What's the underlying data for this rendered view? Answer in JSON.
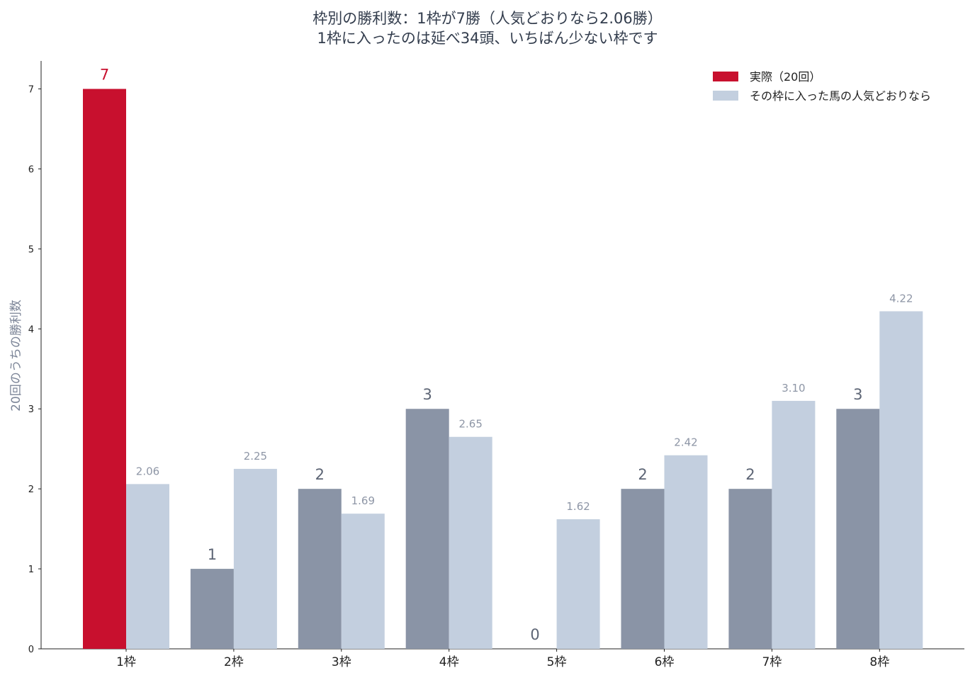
{
  "title_line1": "枠別の勝利数：1枠が7勝（人気どおりなら2.06勝）",
  "title_line2": "1枠に入ったのは延べ34頭、いちばん少ない枠です",
  "chart_data": {
    "type": "bar",
    "categories": [
      "1枠",
      "2枠",
      "3枠",
      "4枠",
      "5枠",
      "6枠",
      "7枠",
      "8枠"
    ],
    "series": [
      {
        "name": "実際（20回）",
        "values": [
          7,
          1,
          2,
          3,
          0,
          2,
          2,
          3
        ]
      },
      {
        "name": "その枠に入った馬の人気どおりなら",
        "values": [
          2.06,
          2.25,
          1.69,
          2.65,
          1.62,
          2.42,
          3.1,
          4.22
        ]
      }
    ],
    "actual_labels": [
      "7",
      "1",
      "2",
      "3",
      "0",
      "2",
      "2",
      "3"
    ],
    "expected_labels": [
      "2.06",
      "2.25",
      "1.69",
      "2.65",
      "1.62",
      "2.42",
      "3.10",
      "4.22"
    ],
    "ylabel": "20回のうちの勝利数",
    "xlabel": "",
    "ylim": [
      0,
      7.35
    ],
    "yticks": [
      "0",
      "1",
      "2",
      "3",
      "4",
      "5",
      "6",
      "7"
    ],
    "colors": {
      "highlight": "#c8102e",
      "actual": "#8a94a6",
      "expected": "#c3cfdf"
    },
    "highlight_index": 0,
    "legend_position": "top-right",
    "grid": false
  }
}
